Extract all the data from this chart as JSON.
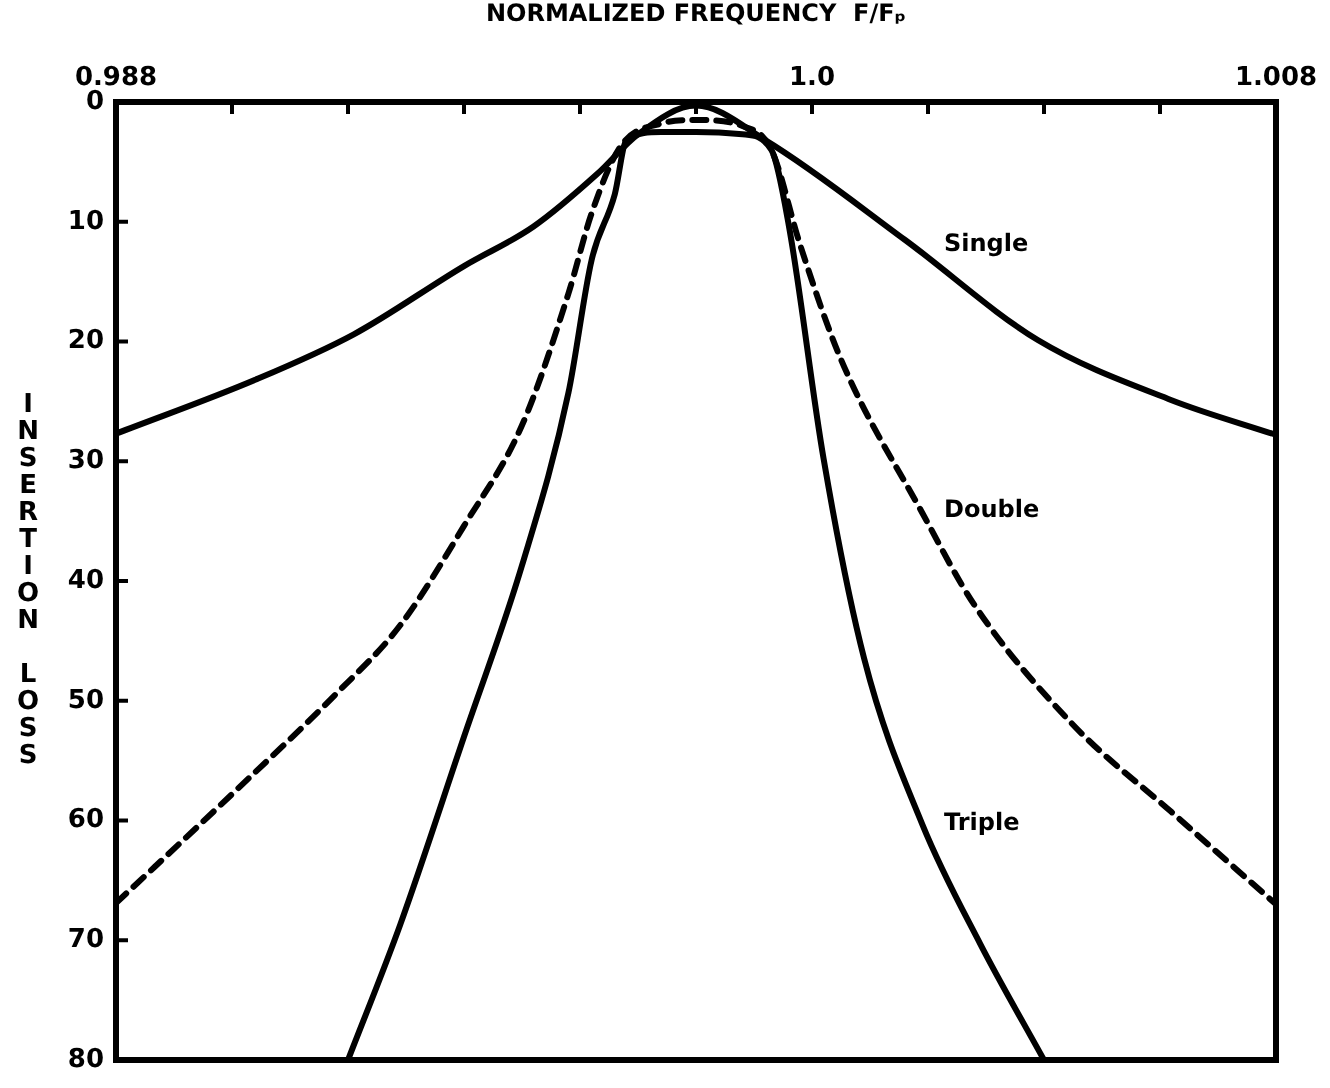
{
  "chart_data": {
    "type": "line",
    "xlabel": "NORMALIZED FREQUENCY  F/Fₚ",
    "ylabel": "INSERTION LOSS",
    "xlim": [
      0.988,
      1.008
    ],
    "xticks": [
      0.988,
      {
        "value": 0.99,
        "label": null
      },
      {
        "value": 0.992,
        "label": null
      },
      {
        "value": 0.994,
        "label": null
      },
      {
        "value": 0.996,
        "label": null
      },
      {
        "value": 0.998,
        "label": null
      },
      {
        "value": 1.0,
        "label": "1.0"
      },
      {
        "value": 1.002,
        "label": null
      },
      {
        "value": 1.004,
        "label": null
      },
      {
        "value": 1.006,
        "label": null
      },
      1.008
    ],
    "ylim": [
      80,
      0
    ],
    "yticks": [
      0,
      10,
      20,
      30,
      40,
      50,
      60,
      70,
      80
    ],
    "grid": false,
    "legend": false,
    "marker": "none",
    "series": [
      {
        "name": "Single",
        "color": "#000000",
        "line_style": "solid",
        "x": [
          0.988,
          0.9904,
          0.9921,
          0.994,
          0.9952,
          0.9963,
          0.997,
          0.998,
          0.9992,
          1.0016,
          1.0039,
          1.0062,
          1.008
        ],
        "values": [
          27.7,
          23.2,
          19.4,
          13.7,
          10.4,
          6,
          2.7,
          0.3,
          3.2,
          11.5,
          19.9,
          24.9,
          27.8
        ]
      },
      {
        "name": "Double",
        "color": "#000000",
        "line_style": "dashed",
        "x": [
          0.988,
          0.99,
          0.9918,
          0.9929,
          0.994,
          0.995,
          0.9958,
          0.9962,
          0.9967,
          0.9974,
          0.998,
          0.9988,
          0.9993,
          0.9998,
          1.0005,
          1.0019,
          1.0028,
          1.0045,
          1.0062,
          1.008
        ],
        "values": [
          66.9,
          57.8,
          49.4,
          43.7,
          35.4,
          27,
          16,
          9.3,
          3.7,
          1.8,
          1.5,
          2,
          4,
          12,
          21.5,
          34.3,
          42,
          52,
          59.3,
          67
        ]
      },
      {
        "name": "Triple",
        "color": "#000000",
        "line_style": "solid",
        "x": [
          0.992,
          0.9929,
          0.994,
          0.995,
          0.9958,
          0.9962,
          0.9966,
          0.9968,
          0.9974,
          0.998,
          0.9988,
          0.9993,
          0.9996,
          1.0002,
          1.0009,
          1.0019,
          1.0029,
          1.004
        ],
        "values": [
          80,
          68.7,
          53,
          38.7,
          24.3,
          13.2,
          7.7,
          3.2,
          2.5,
          2.5,
          2.7,
          4,
          10.3,
          29.8,
          46.5,
          60.3,
          70.3,
          80
        ]
      }
    ]
  }
}
